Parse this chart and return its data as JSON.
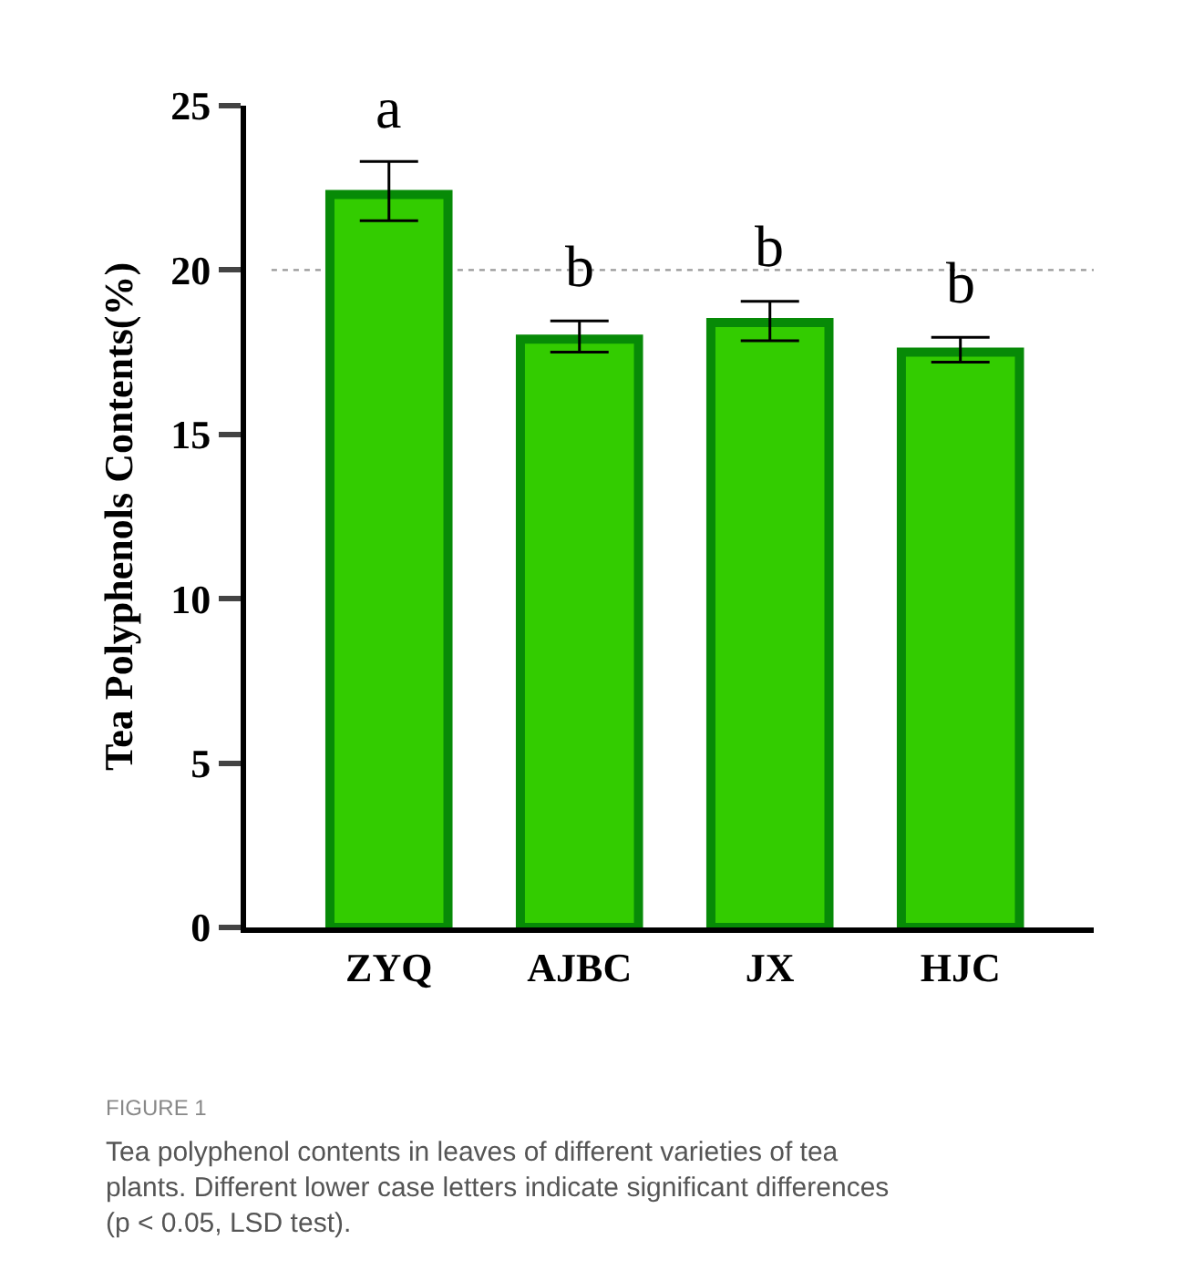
{
  "chart_data": {
    "type": "bar",
    "ylabel": "Tea Polyphenols Contents(%)",
    "categories": [
      "ZYQ",
      "AJBC",
      "JX",
      "HJC"
    ],
    "values": [
      22.3,
      17.9,
      18.4,
      17.5
    ],
    "color": "#33cc00",
    "errors": [
      [
        21.5,
        23.3
      ],
      [
        17.5,
        18.45
      ],
      [
        17.85,
        19.05
      ],
      [
        17.2,
        17.95
      ]
    ],
    "ylim": [
      0,
      25
    ],
    "yticks": [
      0,
      5,
      10,
      15,
      20,
      25
    ],
    "grid": false,
    "ref_lines": [
      {
        "axis": "y",
        "value": 20,
        "label": null,
        "color": "#999999",
        "line_style": "dotted"
      }
    ],
    "annotations": [
      "a",
      "b",
      "b",
      "b",
      "FIGURE 1",
      "Tea polyphenol contents in leaves of different varieties of tea plants. Different lower case letters indicate significant differences (p < 0.05, LSD test)."
    ]
  }
}
